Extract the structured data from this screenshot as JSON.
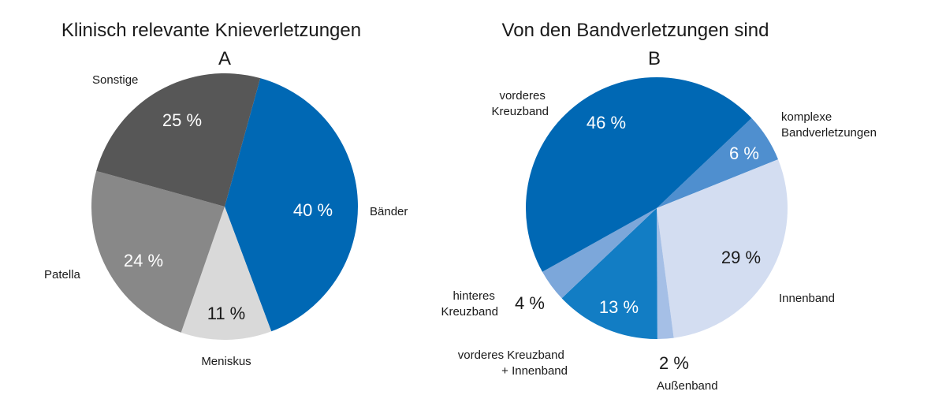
{
  "chart_data": [
    {
      "type": "pie",
      "title": "Klinisch relevante Knieverletzungen",
      "panel": "A",
      "unit": "%",
      "slices": [
        {
          "name": "Bänder",
          "value": 40,
          "label": "40 %",
          "color": "#0068b4",
          "text_color": "#ffffff"
        },
        {
          "name": "Meniskus",
          "value": 11,
          "label": "11 %",
          "color": "#d9d9d9",
          "text_color": "#1a1a1a"
        },
        {
          "name": "Patella",
          "value": 24,
          "label": "24 %",
          "color": "#888888",
          "text_color": "#ffffff"
        },
        {
          "name": "Sonstige",
          "value": 25,
          "label": "25 %",
          "color": "#575757",
          "text_color": "#ffffff"
        }
      ]
    },
    {
      "type": "pie",
      "title": "Von den Bandverletzungen sind",
      "panel": "B",
      "unit": "%",
      "slices": [
        {
          "name": "komplexe Bandverletzungen",
          "lines": [
            "komplexe",
            "Bandverletzungen"
          ],
          "value": 6,
          "label": "6 %",
          "color": "#4f8fcf",
          "text_color": "#ffffff"
        },
        {
          "name": "Innenband",
          "lines": [
            "Innenband"
          ],
          "value": 29,
          "label": "29 %",
          "color": "#d3ddf1",
          "text_color": "#1a1a1a"
        },
        {
          "name": "Außenband",
          "lines": [
            "Außenband"
          ],
          "value": 2,
          "label": "2 %",
          "color": "#a5bfe6",
          "text_color": "#1a1a1a"
        },
        {
          "name": "vorderes Kreuzband + Innenband",
          "lines": [
            "vorderes Kreuzband",
            "+ Innenband"
          ],
          "value": 13,
          "label": "13 %",
          "color": "#127dc4",
          "text_color": "#ffffff"
        },
        {
          "name": "hinteres Kreuzband",
          "lines": [
            "hinteres",
            "Kreuzband"
          ],
          "value": 4,
          "label": "4 %",
          "color": "#7ca7da",
          "text_color": "#1a1a1a"
        },
        {
          "name": "vorderes Kreuzband",
          "lines": [
            "vorderes",
            "Kreuzband"
          ],
          "value": 46,
          "label": "46 %",
          "color": "#0068b4",
          "text_color": "#ffffff"
        }
      ]
    }
  ]
}
